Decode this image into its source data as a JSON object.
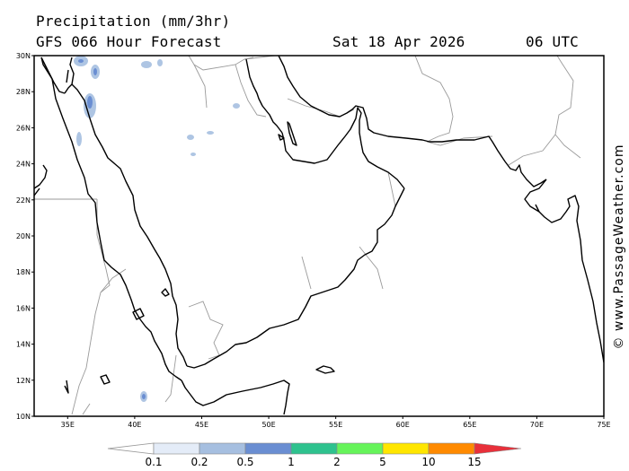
{
  "header": {
    "title": "Precipitation (mm/3hr)",
    "subtitle": "GFS 066 Hour Forecast",
    "date": "Sat 18 Apr 2026",
    "time": "06 UTC"
  },
  "map": {
    "lat_labels": [
      "30N",
      "28N",
      "26N",
      "24N",
      "22N",
      "20N",
      "18N",
      "16N",
      "14N",
      "12N",
      "10N"
    ],
    "lon_labels": [
      "35E",
      "40E",
      "45E",
      "50E",
      "55E",
      "60E",
      "65E",
      "70E",
      "75E"
    ],
    "land_color": "#ffffff",
    "coast_color": "#000000",
    "border_color": "#9a9a9a"
  },
  "legend": {
    "labels": [
      "0.1",
      "0.2",
      "0.5",
      "1",
      "2",
      "5",
      "10",
      "15"
    ],
    "colors": [
      "#ffffff",
      "#e4ecf8",
      "#a6bfe0",
      "#6a8ed2",
      "#2ec28e",
      "#66f45a",
      "#ffe600",
      "#ff8a00",
      "#e8303a"
    ]
  },
  "brand": "© www.PassageWeather.com"
}
